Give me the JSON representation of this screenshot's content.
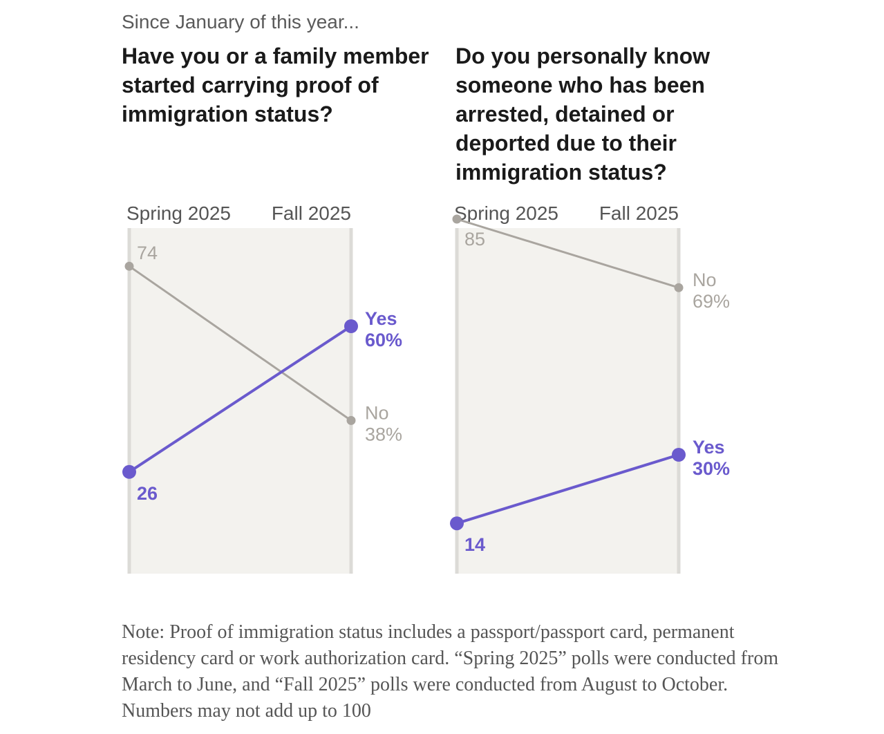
{
  "kicker": "Since January of this year...",
  "questions": [
    "Have you or a family member started carrying proof of immigration status?",
    "Do you personally know someone who has been arrested, detained or deported due to their immigration status?"
  ],
  "note": {
    "label": "Note:",
    "text": "Proof of immigration status includes a passport/passport card, permanent residency card or work authorization card. “Spring 2025” polls were conducted from March to June, and “Fall 2025” polls were conducted from August to October. Numbers may not add up to 100"
  },
  "colors": {
    "yes": "#6a5acd",
    "no": "#a9a59f",
    "panel_bg": "#f3f2ee",
    "axis_line": "#dcdbd7",
    "axis_label": "#555555"
  },
  "chart_data": [
    {
      "type": "line",
      "title": "Have you or a family member started carrying proof of immigration status?",
      "categories": [
        "Spring 2025",
        "Fall 2025"
      ],
      "ylim": [
        0,
        100
      ],
      "grid": false,
      "series": [
        {
          "name": "Yes",
          "values": [
            26,
            60
          ],
          "start_label": "26",
          "end_label": "60%",
          "color": "#6a5acd"
        },
        {
          "name": "No",
          "values": [
            74,
            38
          ],
          "start_label": "74",
          "end_label": "38%",
          "color": "#a9a59f"
        }
      ]
    },
    {
      "type": "line",
      "title": "Do you personally know someone who has been arrested, detained or deported due to their immigration status?",
      "categories": [
        "Spring 2025",
        "Fall 2025"
      ],
      "ylim": [
        0,
        100
      ],
      "grid": false,
      "series": [
        {
          "name": "Yes",
          "values": [
            14,
            30
          ],
          "start_label": "14",
          "end_label": "30%",
          "color": "#6a5acd"
        },
        {
          "name": "No",
          "values": [
            85,
            69
          ],
          "start_label": "85",
          "end_label": "69%",
          "color": "#a9a59f"
        }
      ]
    }
  ]
}
